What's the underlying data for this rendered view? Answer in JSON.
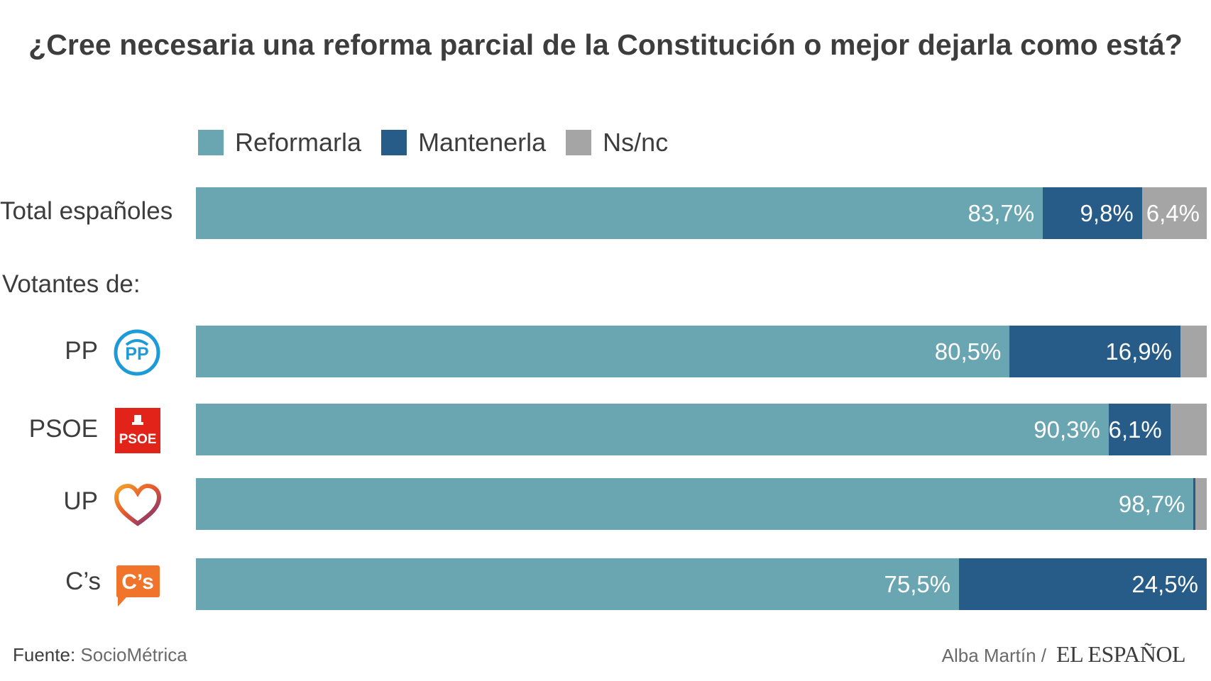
{
  "chart_data": {
    "type": "bar",
    "orientation": "horizontal",
    "stacked": true,
    "title": "¿Cree necesaria una reforma parcial de la Constitución o mejor dejarla como está?",
    "section_label": "Votantes de:",
    "colors": {
      "reformarla": "#6aa6b2",
      "mantenerla": "#275c89",
      "nsnc": "#a5a5a5"
    },
    "legend": [
      {
        "key": "reformarla",
        "label": "Reformarla"
      },
      {
        "key": "mantenerla",
        "label": "Mantenerla"
      },
      {
        "key": "nsnc",
        "label": "Ns/nc"
      }
    ],
    "categories": [
      "Total españoles",
      "PP",
      "PSOE",
      "UP",
      "C’s"
    ],
    "series": [
      {
        "name": "Reformarla",
        "key": "reformarla",
        "values": [
          83.7,
          80.5,
          90.3,
          98.7,
          75.5
        ],
        "labels": [
          "83,7%",
          "80,5%",
          "90,3%",
          "98,7%",
          "75,5%"
        ]
      },
      {
        "name": "Mantenerla",
        "key": "mantenerla",
        "values": [
          9.8,
          16.9,
          6.1,
          0.2,
          24.5
        ],
        "labels": [
          "9,8%",
          "16,9%",
          "6,1%",
          "",
          "24,5%"
        ]
      },
      {
        "name": "Ns/nc",
        "key": "nsnc",
        "values": [
          6.4,
          2.6,
          3.6,
          1.1,
          0
        ],
        "labels": [
          "6,4%",
          "",
          "",
          "",
          ""
        ]
      }
    ],
    "xlim": [
      0,
      100
    ]
  },
  "logos": {
    "pp": "PP",
    "psoe": "PSOE",
    "cs": "C’s"
  },
  "footer": {
    "source_label": "Fuente:",
    "source_value": "SocioMétrica",
    "author": "Alba Martín /",
    "brand": "EL ESPAÑOL"
  }
}
